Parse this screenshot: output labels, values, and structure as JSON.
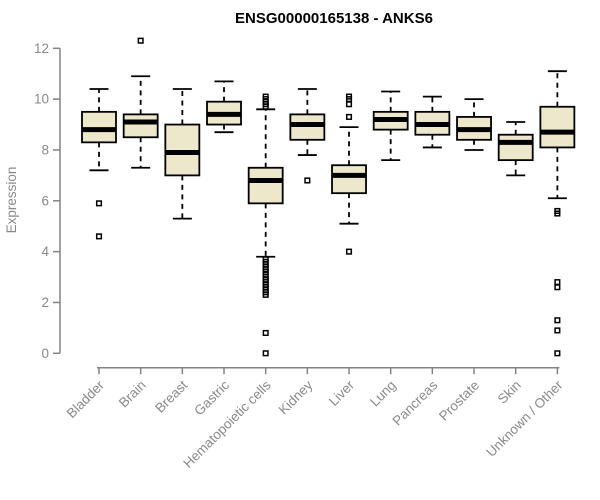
{
  "colors": {
    "background": "#FFFFFF",
    "title": "#000000",
    "axis": "#848484",
    "labels": "#8A8A8A",
    "box_fill": "#EDE7CC",
    "box_stroke": "#000000"
  },
  "chart_data": {
    "type": "boxplot",
    "title": "ENSG00000165138 - ANKS6",
    "ylabel": "Expression",
    "xlabel": "",
    "ylim": [
      0,
      12
    ],
    "yticks": [
      0,
      2,
      4,
      6,
      8,
      10,
      12
    ],
    "grid": false,
    "legend": null,
    "categories": [
      "Bladder",
      "Brain",
      "Breast",
      "Gastric",
      "Hematopoietic cells",
      "Kidney",
      "Liver",
      "Lung",
      "Pancreas",
      "Prostate",
      "Skin",
      "Unknown / Other"
    ],
    "series": [
      {
        "name": "Bladder",
        "whisker_low": 7.2,
        "q1": 8.3,
        "median": 8.8,
        "q3": 9.5,
        "whisker_high": 10.4,
        "outliers": [
          5.9,
          4.6
        ]
      },
      {
        "name": "Brain",
        "whisker_low": 7.3,
        "q1": 8.5,
        "median": 9.1,
        "q3": 9.4,
        "whisker_high": 10.9,
        "outliers": [
          12.3
        ]
      },
      {
        "name": "Breast",
        "whisker_low": 5.3,
        "q1": 7.0,
        "median": 7.9,
        "q3": 9.0,
        "whisker_high": 10.4,
        "outliers": []
      },
      {
        "name": "Gastric",
        "whisker_low": 8.7,
        "q1": 9.0,
        "median": 9.4,
        "q3": 9.9,
        "whisker_high": 10.7,
        "outliers": []
      },
      {
        "name": "Hematopoietic cells",
        "whisker_low": 3.8,
        "q1": 5.9,
        "median": 6.8,
        "q3": 7.3,
        "whisker_high": 9.6,
        "outliers": [
          9.7,
          9.8,
          9.9,
          10.0,
          10.1,
          3.7,
          3.6,
          3.5,
          3.4,
          3.3,
          3.2,
          3.1,
          3.0,
          2.9,
          2.8,
          2.7,
          2.6,
          2.5,
          2.4,
          2.3,
          0.8,
          0.0
        ]
      },
      {
        "name": "Kidney",
        "whisker_low": 7.8,
        "q1": 8.4,
        "median": 9.0,
        "q3": 9.4,
        "whisker_high": 10.4,
        "outliers": [
          6.8
        ]
      },
      {
        "name": "Liver",
        "whisker_low": 5.1,
        "q1": 6.3,
        "median": 7.0,
        "q3": 7.4,
        "whisker_high": 8.9,
        "outliers": [
          10.1,
          10.0,
          9.8,
          9.3,
          4.0
        ]
      },
      {
        "name": "Lung",
        "whisker_low": 7.6,
        "q1": 8.8,
        "median": 9.2,
        "q3": 9.5,
        "whisker_high": 10.3,
        "outliers": []
      },
      {
        "name": "Pancreas",
        "whisker_low": 8.1,
        "q1": 8.6,
        "median": 9.0,
        "q3": 9.5,
        "whisker_high": 10.1,
        "outliers": []
      },
      {
        "name": "Prostate",
        "whisker_low": 8.0,
        "q1": 8.4,
        "median": 8.8,
        "q3": 9.3,
        "whisker_high": 10.0,
        "outliers": []
      },
      {
        "name": "Skin",
        "whisker_low": 7.0,
        "q1": 7.6,
        "median": 8.3,
        "q3": 8.6,
        "whisker_high": 9.1,
        "outliers": []
      },
      {
        "name": "Unknown / Other",
        "whisker_low": 6.1,
        "q1": 8.1,
        "median": 8.7,
        "q3": 9.7,
        "whisker_high": 11.1,
        "outliers": [
          5.6,
          5.5,
          2.8,
          2.6,
          1.3,
          0.9,
          0.0
        ]
      }
    ]
  }
}
